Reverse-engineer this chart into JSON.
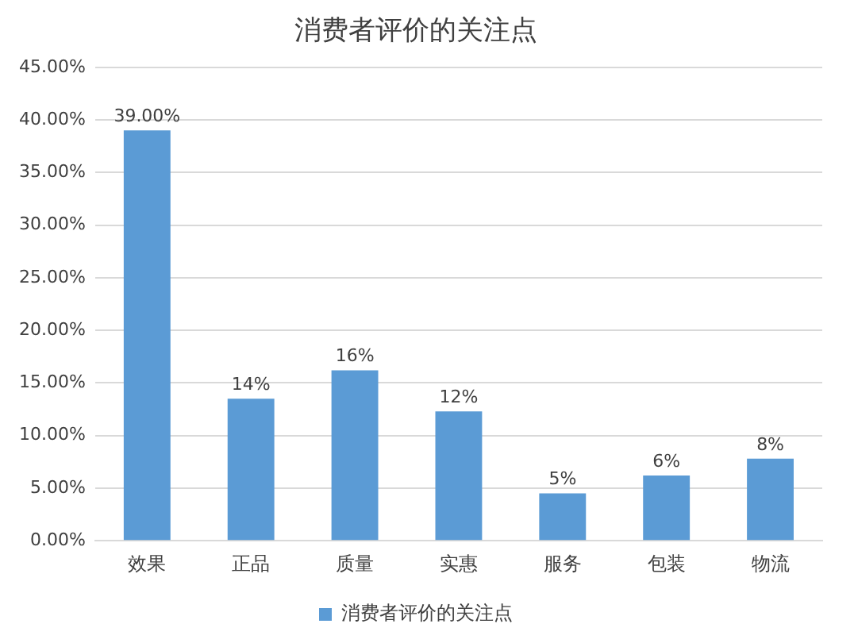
{
  "chart_data": {
    "type": "bar",
    "title": "消费者评价的关注点",
    "categories": [
      "效果",
      "正品",
      "质量",
      "实惠",
      "服务",
      "包装",
      "物流"
    ],
    "series": [
      {
        "name": "消费者评价的关注点",
        "color": "#5b9bd5",
        "values": [
          39,
          13.5,
          16.2,
          12.3,
          4.5,
          6.2,
          7.8
        ]
      }
    ],
    "value_labels": [
      "39.00%",
      "14%",
      "16%",
      "12%",
      "5%",
      "6%",
      "8%"
    ],
    "ylim": [
      0,
      45
    ],
    "yticks": [
      {
        "value": 0,
        "label": "0.00%"
      },
      {
        "value": 5,
        "label": "5.00%"
      },
      {
        "value": 10,
        "label": "10.00%"
      },
      {
        "value": 15,
        "label": "15.00%"
      },
      {
        "value": 20,
        "label": "20.00%"
      },
      {
        "value": 25,
        "label": "25.00%"
      },
      {
        "value": 30,
        "label": "30.00%"
      },
      {
        "value": 35,
        "label": "35.00%"
      },
      {
        "value": 40,
        "label": "40.00%"
      },
      {
        "value": 45,
        "label": "45.00%"
      }
    ],
    "grid": "y",
    "legend": "bottom"
  }
}
